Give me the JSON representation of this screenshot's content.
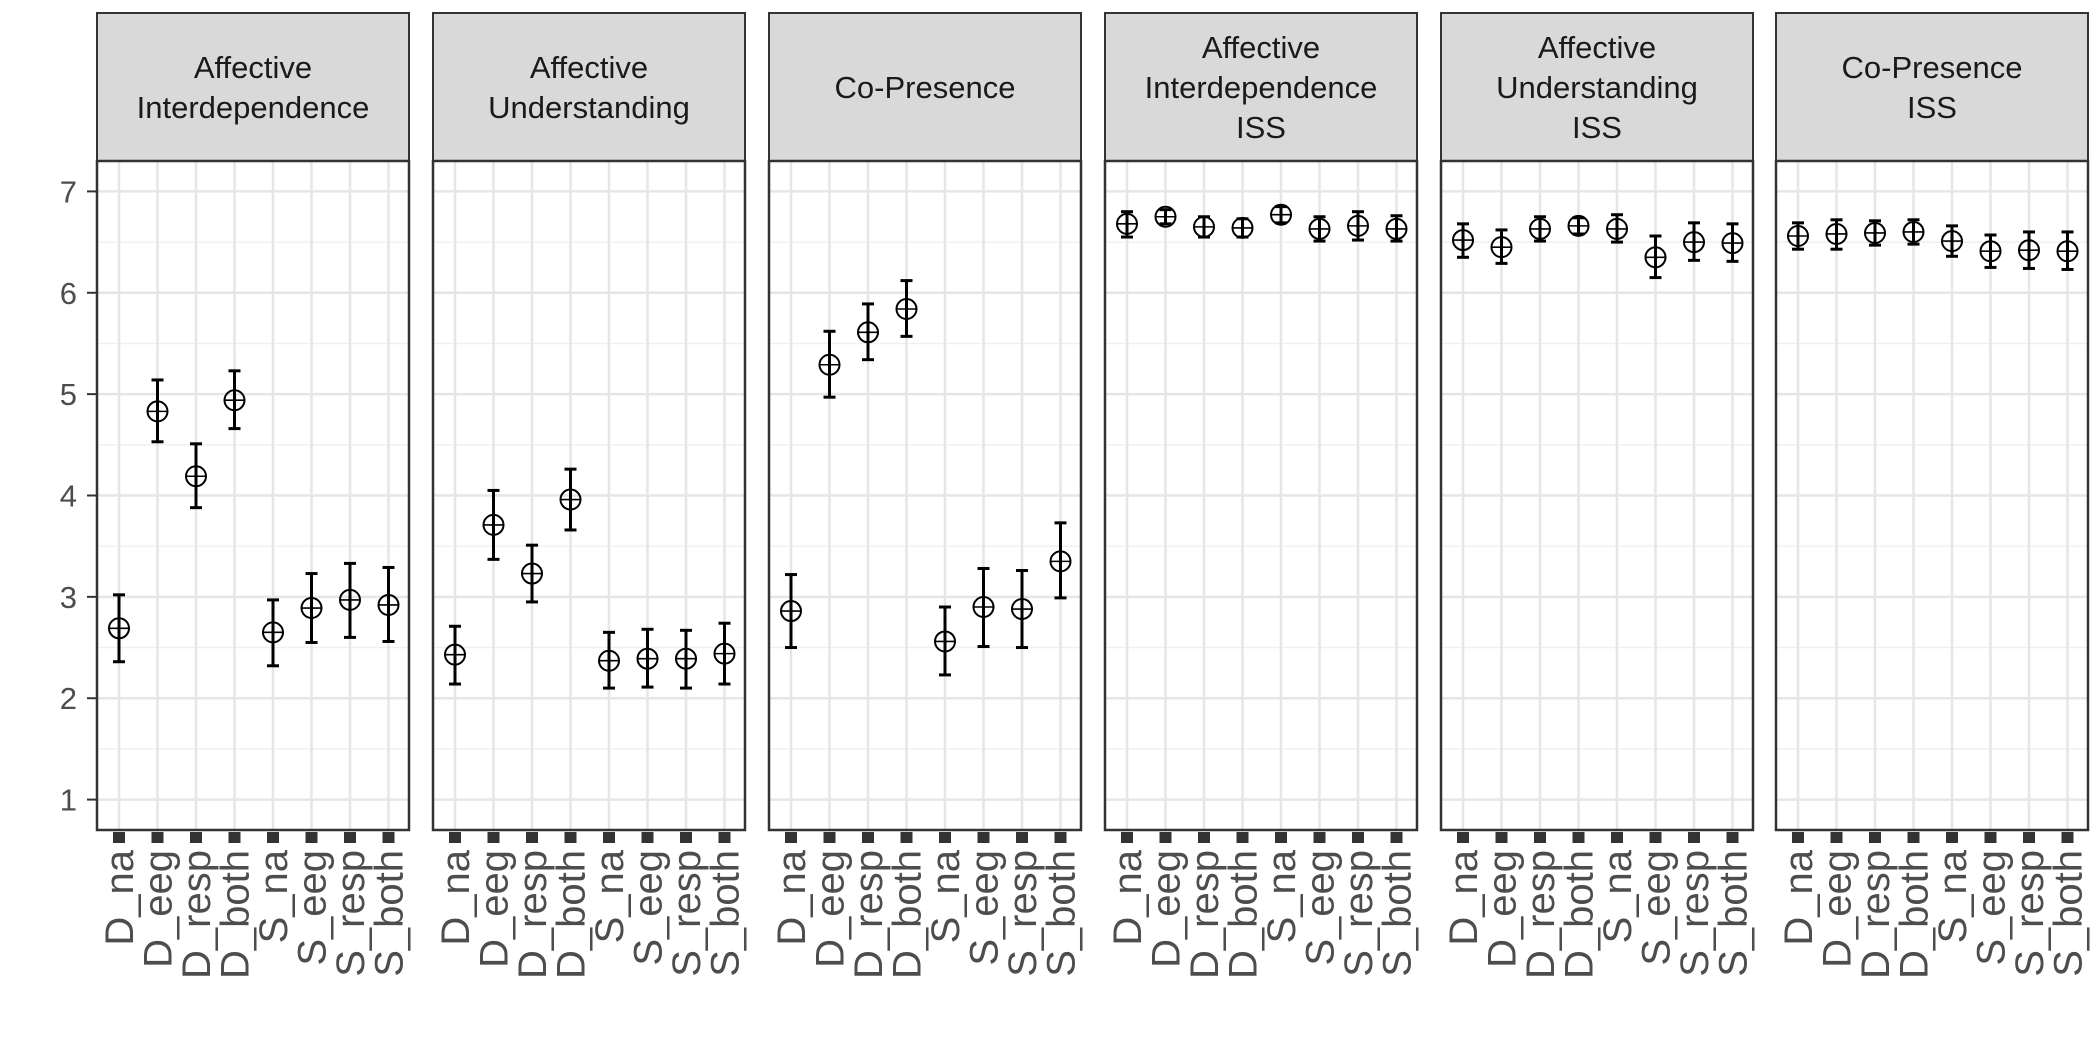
{
  "chart_data": {
    "type": "scatter",
    "title": "",
    "xlabel": "",
    "ylabel": "",
    "ylim": [
      0.7,
      7.3
    ],
    "yticks": [
      1,
      2,
      3,
      4,
      5,
      6,
      7
    ],
    "grid": true,
    "categories": [
      "D_na",
      "D_eeg",
      "D_resp",
      "D_both",
      "S_na",
      "S_eeg",
      "S_resp",
      "S_both"
    ],
    "panels": [
      {
        "strip": [
          "Affective",
          "Interdependence"
        ],
        "points": [
          {
            "mean": 2.69,
            "low": 2.36,
            "high": 3.02
          },
          {
            "mean": 4.83,
            "low": 4.53,
            "high": 5.14
          },
          {
            "mean": 4.19,
            "low": 3.88,
            "high": 4.51
          },
          {
            "mean": 4.94,
            "low": 4.66,
            "high": 5.23
          },
          {
            "mean": 2.65,
            "low": 2.32,
            "high": 2.97
          },
          {
            "mean": 2.89,
            "low": 2.55,
            "high": 3.23
          },
          {
            "mean": 2.97,
            "low": 2.6,
            "high": 3.33
          },
          {
            "mean": 2.92,
            "low": 2.56,
            "high": 3.29
          }
        ]
      },
      {
        "strip": [
          "Affective",
          "Understanding"
        ],
        "points": [
          {
            "mean": 2.43,
            "low": 2.14,
            "high": 2.71
          },
          {
            "mean": 3.71,
            "low": 3.37,
            "high": 4.05
          },
          {
            "mean": 3.23,
            "low": 2.95,
            "high": 3.51
          },
          {
            "mean": 3.96,
            "low": 3.66,
            "high": 4.26
          },
          {
            "mean": 2.37,
            "low": 2.1,
            "high": 2.65
          },
          {
            "mean": 2.39,
            "low": 2.11,
            "high": 2.68
          },
          {
            "mean": 2.39,
            "low": 2.1,
            "high": 2.67
          },
          {
            "mean": 2.44,
            "low": 2.14,
            "high": 2.74
          }
        ]
      },
      {
        "strip": [
          "Co-Presence"
        ],
        "points": [
          {
            "mean": 2.86,
            "low": 2.5,
            "high": 3.22
          },
          {
            "mean": 5.29,
            "low": 4.97,
            "high": 5.62
          },
          {
            "mean": 5.61,
            "low": 5.34,
            "high": 5.89
          },
          {
            "mean": 5.84,
            "low": 5.57,
            "high": 6.12
          },
          {
            "mean": 2.56,
            "low": 2.23,
            "high": 2.9
          },
          {
            "mean": 2.9,
            "low": 2.51,
            "high": 3.28
          },
          {
            "mean": 2.88,
            "low": 2.5,
            "high": 3.26
          },
          {
            "mean": 3.35,
            "low": 2.99,
            "high": 3.73
          }
        ]
      },
      {
        "strip": [
          "Affective",
          "Interdependence",
          "ISS"
        ],
        "points": [
          {
            "mean": 6.68,
            "low": 6.55,
            "high": 6.8
          },
          {
            "mean": 6.75,
            "low": 6.68,
            "high": 6.82
          },
          {
            "mean": 6.65,
            "low": 6.55,
            "high": 6.75
          },
          {
            "mean": 6.64,
            "low": 6.55,
            "high": 6.73
          },
          {
            "mean": 6.77,
            "low": 6.69,
            "high": 6.85
          },
          {
            "mean": 6.63,
            "low": 6.51,
            "high": 6.75
          },
          {
            "mean": 6.66,
            "low": 6.52,
            "high": 6.8
          },
          {
            "mean": 6.63,
            "low": 6.51,
            "high": 6.76
          }
        ]
      },
      {
        "strip": [
          "Affective",
          "Understanding",
          "ISS"
        ],
        "points": [
          {
            "mean": 6.52,
            "low": 6.35,
            "high": 6.68
          },
          {
            "mean": 6.45,
            "low": 6.29,
            "high": 6.62
          },
          {
            "mean": 6.63,
            "low": 6.51,
            "high": 6.75
          },
          {
            "mean": 6.66,
            "low": 6.58,
            "high": 6.74
          },
          {
            "mean": 6.63,
            "low": 6.5,
            "high": 6.77
          },
          {
            "mean": 6.35,
            "low": 6.15,
            "high": 6.56
          },
          {
            "mean": 6.5,
            "low": 6.32,
            "high": 6.69
          },
          {
            "mean": 6.49,
            "low": 6.31,
            "high": 6.68
          }
        ]
      },
      {
        "strip": [
          "Co-Presence",
          "ISS"
        ],
        "points": [
          {
            "mean": 6.56,
            "low": 6.43,
            "high": 6.69
          },
          {
            "mean": 6.58,
            "low": 6.43,
            "high": 6.72
          },
          {
            "mean": 6.59,
            "low": 6.47,
            "high": 6.71
          },
          {
            "mean": 6.6,
            "low": 6.48,
            "high": 6.72
          },
          {
            "mean": 6.51,
            "low": 6.36,
            "high": 6.66
          },
          {
            "mean": 6.41,
            "low": 6.25,
            "high": 6.57
          },
          {
            "mean": 6.42,
            "low": 6.24,
            "high": 6.6
          },
          {
            "mean": 6.41,
            "low": 6.23,
            "high": 6.6
          }
        ]
      }
    ]
  }
}
